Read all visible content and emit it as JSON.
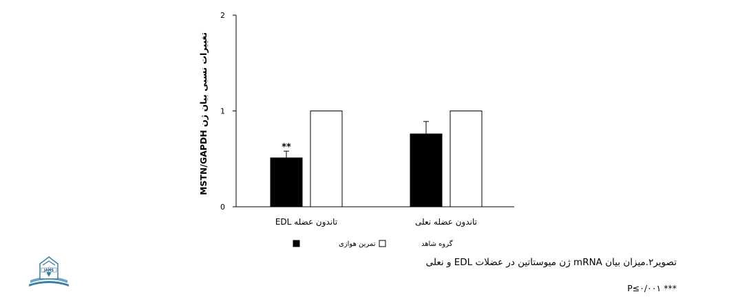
{
  "chart_data": {
    "type": "bar",
    "categories": [
      "تاندون عضله EDL",
      "تاندون عضله نعلی"
    ],
    "series": [
      {
        "name": "تمرین هوازی",
        "color": "#000000",
        "values": [
          0.51,
          0.76
        ],
        "errors": [
          0.07,
          0.13
        ]
      },
      {
        "name": "گروه شاهد",
        "color": "#ffffff",
        "values": [
          1.0,
          1.0
        ],
        "errors": [
          0,
          0
        ]
      }
    ],
    "significance": [
      "**",
      ""
    ],
    "ylabel": "MSTN/GAPDH تغییرات نسبی بیان ژن",
    "xlabel": "",
    "ylim": [
      0,
      2
    ],
    "yticks": [
      "0",
      "1",
      "2"
    ],
    "legend_position": "bottom"
  },
  "caption": "تصویر۲.میزان بیان mRNA ژن میوستاتین در عضلات EDL و نعلی",
  "note": "P≤۰/۰۰۱ ***",
  "logo": {
    "text": "JAMS",
    "icon": "journal-logo-icon"
  }
}
